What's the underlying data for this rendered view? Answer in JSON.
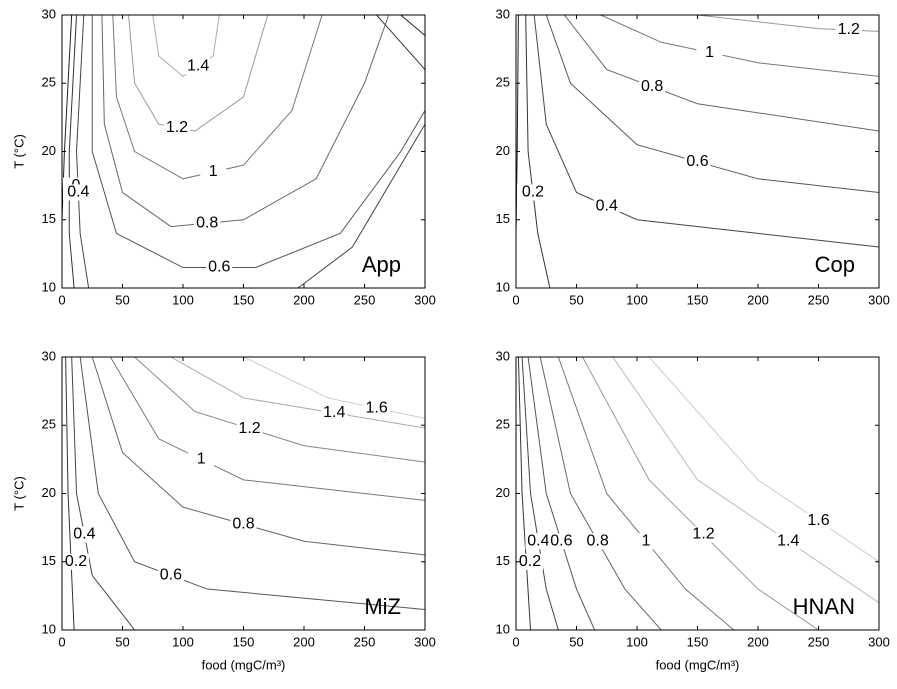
{
  "chart_data": [
    {
      "type": "contour",
      "name": "App",
      "ylabel": "T (°C)",
      "xlim": [
        0,
        300
      ],
      "ylim": [
        10,
        30
      ],
      "xticks": [
        0,
        50,
        100,
        150,
        200,
        250,
        300
      ],
      "yticks": [
        10,
        15,
        20,
        25,
        30
      ],
      "series": [
        {
          "level": 0,
          "color": "#222222",
          "x": [
            8,
            2,
            0,
            null,
            280,
            300
          ],
          "y": [
            30,
            20,
            15,
            null,
            30,
            28.5
          ]
        },
        {
          "level": 0.2,
          "color": "#333333",
          "x": [
            12,
            6,
            6,
            10,
            null,
            260,
            290,
            300
          ],
          "y": [
            30,
            20,
            14,
            10,
            null,
            30,
            27,
            26
          ]
        },
        {
          "level": 0.4,
          "color": "#444444",
          "x": [
            18,
            12,
            15,
            22,
            null,
            195,
            240,
            280,
            300
          ],
          "y": [
            30,
            20,
            14,
            10,
            null,
            10,
            13,
            19,
            22
          ]
        },
        {
          "level": 0.6,
          "color": "#555555",
          "x": [
            25,
            25,
            45,
            100,
            160,
            230,
            280,
            300
          ],
          "y": [
            30,
            20,
            14,
            11.5,
            11.5,
            14,
            20,
            23
          ]
        },
        {
          "level": 0.8,
          "color": "#666666",
          "x": [
            33,
            35,
            50,
            90,
            150,
            210,
            250,
            270
          ],
          "y": [
            30,
            22,
            17,
            14.5,
            15,
            18,
            25,
            30
          ]
        },
        {
          "level": 1,
          "color": "#777777",
          "x": [
            42,
            45,
            60,
            100,
            150,
            190,
            215
          ],
          "y": [
            30,
            24,
            20,
            18,
            19,
            23,
            30
          ]
        },
        {
          "level": 1.2,
          "color": "#999999",
          "x": [
            55,
            60,
            80,
            110,
            150,
            170
          ],
          "y": [
            30,
            25,
            22,
            21.5,
            24,
            30
          ]
        },
        {
          "level": 1.4,
          "color": "#aaaaaa",
          "x": [
            75,
            80,
            100,
            125,
            130
          ],
          "y": [
            30,
            27,
            25.5,
            27,
            30
          ]
        }
      ]
    },
    {
      "type": "contour",
      "name": "Cop",
      "xlim": [
        0,
        300
      ],
      "ylim": [
        10,
        30
      ],
      "xticks": [
        0,
        50,
        100,
        150,
        200,
        250,
        300
      ],
      "yticks": [
        10,
        15,
        20,
        25,
        30
      ],
      "series": [
        {
          "level": 0,
          "color": "#222222",
          "x": [
            2,
            1,
            0
          ],
          "y": [
            30,
            20,
            14
          ]
        },
        {
          "level": 0.2,
          "color": "#333333",
          "x": [
            8,
            10,
            18,
            28
          ],
          "y": [
            30,
            20,
            14,
            10
          ]
        },
        {
          "level": 0.4,
          "color": "#444444",
          "x": [
            15,
            25,
            50,
            100,
            200,
            300
          ],
          "y": [
            30,
            22,
            17,
            15,
            14,
            13
          ]
        },
        {
          "level": 0.6,
          "color": "#555555",
          "x": [
            25,
            45,
            100,
            200,
            300
          ],
          "y": [
            30,
            25,
            20.5,
            18,
            17
          ]
        },
        {
          "level": 0.8,
          "color": "#666666",
          "x": [
            40,
            75,
            150,
            300
          ],
          "y": [
            30,
            26,
            23.5,
            21.5
          ]
        },
        {
          "level": 1,
          "color": "#777777",
          "x": [
            70,
            120,
            200,
            300
          ],
          "y": [
            30,
            28,
            26.5,
            25.5
          ]
        },
        {
          "level": 1.2,
          "color": "#999999",
          "x": [
            150,
            250,
            300
          ],
          "y": [
            30,
            29,
            28.8
          ]
        }
      ]
    },
    {
      "type": "contour",
      "name": "MiZ",
      "xlabel": "food (mgC/m³)",
      "ylabel": "T (°C)",
      "xlim": [
        0,
        300
      ],
      "ylim": [
        10,
        30
      ],
      "xticks": [
        0,
        50,
        100,
        150,
        200,
        250,
        300
      ],
      "yticks": [
        10,
        15,
        20,
        25,
        30
      ],
      "series": [
        {
          "level": 0.2,
          "color": "#333333",
          "x": [
            3,
            5,
            10
          ],
          "y": [
            30,
            20,
            10
          ]
        },
        {
          "level": 0.4,
          "color": "#444444",
          "x": [
            8,
            12,
            25,
            60
          ],
          "y": [
            30,
            20,
            14,
            10
          ]
        },
        {
          "level": 0.6,
          "color": "#555555",
          "x": [
            15,
            30,
            60,
            120,
            300
          ],
          "y": [
            30,
            20,
            15,
            13,
            11.5
          ]
        },
        {
          "level": 0.8,
          "color": "#666666",
          "x": [
            25,
            50,
            100,
            200,
            300
          ],
          "y": [
            30,
            23,
            19,
            16.5,
            15.5
          ]
        },
        {
          "level": 1,
          "color": "#777777",
          "x": [
            40,
            80,
            150,
            300
          ],
          "y": [
            30,
            24,
            21,
            19.5
          ]
        },
        {
          "level": 1.2,
          "color": "#888888",
          "x": [
            60,
            110,
            200,
            300
          ],
          "y": [
            30,
            26,
            23.5,
            22.3
          ]
        },
        {
          "level": 1.4,
          "color": "#aaaaaa",
          "x": [
            90,
            150,
            300
          ],
          "y": [
            30,
            27,
            24.8
          ]
        },
        {
          "level": 1.6,
          "color": "#cccccc",
          "x": [
            150,
            220,
            300
          ],
          "y": [
            30,
            27,
            25.5
          ]
        }
      ]
    },
    {
      "type": "contour",
      "name": "HNAN",
      "xlabel": "food (mgC/m³)",
      "xlim": [
        0,
        300
      ],
      "ylim": [
        10,
        30
      ],
      "xticks": [
        0,
        50,
        100,
        150,
        200,
        250,
        300
      ],
      "yticks": [
        10,
        15,
        20,
        25,
        30
      ],
      "series": [
        {
          "level": 0.2,
          "color": "#333333",
          "x": [
            2,
            5,
            12
          ],
          "y": [
            30,
            20,
            10
          ]
        },
        {
          "level": 0.4,
          "color": "#444444",
          "x": [
            5,
            12,
            25,
            35
          ],
          "y": [
            30,
            20,
            13,
            10
          ]
        },
        {
          "level": 0.6,
          "color": "#555555",
          "x": [
            10,
            25,
            50,
            65
          ],
          "y": [
            30,
            20,
            13,
            10
          ]
        },
        {
          "level": 0.8,
          "color": "#666666",
          "x": [
            20,
            45,
            90,
            120
          ],
          "y": [
            30,
            20,
            13,
            10
          ]
        },
        {
          "level": 1,
          "color": "#777777",
          "x": [
            35,
            75,
            140,
            180
          ],
          "y": [
            30,
            20,
            13,
            10
          ]
        },
        {
          "level": 1.2,
          "color": "#999999",
          "x": [
            55,
            110,
            200,
            250
          ],
          "y": [
            30,
            21,
            13,
            10
          ]
        },
        {
          "level": 1.4,
          "color": "#bbbbbb",
          "x": [
            80,
            150,
            300
          ],
          "y": [
            30,
            21,
            12
          ]
        },
        {
          "level": 1.6,
          "color": "#cccccc",
          "x": [
            110,
            200,
            300
          ],
          "y": [
            30,
            21,
            15
          ]
        }
      ]
    }
  ]
}
